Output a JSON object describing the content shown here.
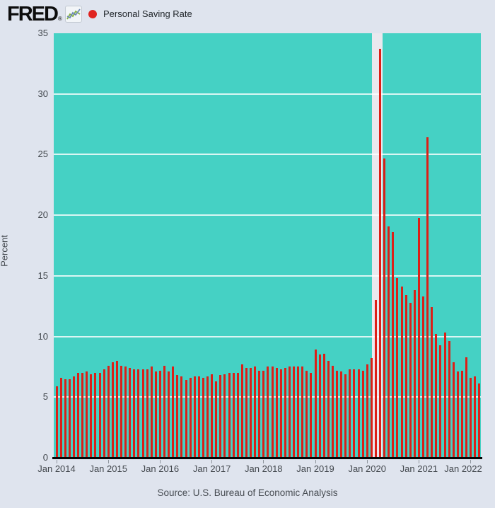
{
  "header": {
    "logo": "FRED",
    "logo_reg": "®",
    "legend": {
      "label": "Personal Saving Rate",
      "marker_color": "#e02420"
    }
  },
  "footer": {
    "source": "Source: U.S. Bureau of Economic Analysis"
  },
  "chart_data": {
    "type": "bar",
    "title": "Personal Saving Rate",
    "xlabel": "",
    "ylabel": "Percent",
    "ylim": [
      0,
      35
    ],
    "yticks": [
      0,
      5,
      10,
      15,
      20,
      25,
      30,
      35
    ],
    "grid": "horizontal-white",
    "legend_position": "top-left",
    "start_month": "2014-01",
    "end_month": "2022-03",
    "xticks": [
      "Jan 2014",
      "Jan 2015",
      "Jan 2016",
      "Jan 2017",
      "Jan 2018",
      "Jan 2019",
      "Jan 2020",
      "Jan 2021",
      "Jan 2022"
    ],
    "series": [
      {
        "name": "Personal Saving Rate",
        "unit": "Percent",
        "frequency": "monthly",
        "values": [
          5.9,
          6.6,
          6.5,
          6.5,
          6.7,
          7.0,
          7.0,
          7.1,
          6.9,
          7.0,
          7.0,
          7.3,
          7.6,
          7.9,
          8.0,
          7.6,
          7.5,
          7.4,
          7.3,
          7.3,
          7.3,
          7.3,
          7.5,
          7.1,
          7.2,
          7.6,
          7.1,
          7.5,
          6.8,
          6.7,
          6.4,
          6.6,
          6.7,
          6.7,
          6.6,
          6.7,
          6.9,
          6.3,
          6.8,
          6.9,
          7.0,
          7.0,
          7.0,
          7.7,
          7.4,
          7.4,
          7.5,
          7.2,
          7.2,
          7.5,
          7.5,
          7.4,
          7.3,
          7.4,
          7.5,
          7.5,
          7.5,
          7.5,
          7.2,
          7.0,
          8.9,
          8.5,
          8.6,
          8.0,
          7.6,
          7.2,
          7.1,
          6.9,
          7.3,
          7.3,
          7.3,
          7.2,
          7.7,
          8.2,
          13.0,
          33.7,
          24.7,
          19.1,
          18.6,
          14.8,
          14.1,
          13.4,
          12.8,
          13.8,
          19.8,
          13.3,
          26.4,
          12.4,
          10.2,
          9.3,
          10.3,
          9.6,
          7.9,
          7.1,
          7.2,
          8.3,
          6.6,
          6.7,
          6.1
        ]
      }
    ],
    "recession_band": {
      "start": "2020-02",
      "end": "2020-04",
      "color": "#eae8ee"
    },
    "bar_color": "#dc1f17",
    "plot_bg_color": "#45d1c4",
    "page_bg_color": "#dfe4ee",
    "axis_line_color": "#070707"
  }
}
